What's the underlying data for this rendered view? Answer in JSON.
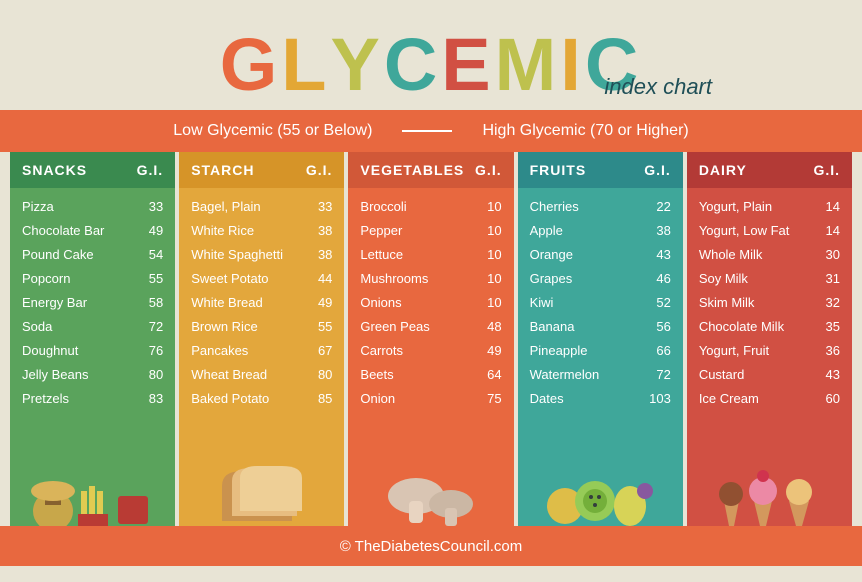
{
  "title_letters": [
    {
      "char": "G",
      "color": "#e8683f"
    },
    {
      "char": "L",
      "color": "#e3a735"
    },
    {
      "char": "Y",
      "color": "#bec14e"
    },
    {
      "char": "C",
      "color": "#3fa79a"
    },
    {
      "char": "E",
      "color": "#d15043"
    },
    {
      "char": "M",
      "color": "#bec14e"
    },
    {
      "char": "I",
      "color": "#e3a735"
    },
    {
      "char": "C",
      "color": "#3fa79a"
    }
  ],
  "subtitle": "index chart",
  "legend": {
    "low": "Low Glycemic (55 or Below)",
    "high": "High Glycemic (70 or Higher)"
  },
  "gi_label": "G.I.",
  "columns": [
    {
      "name": "SNACKS",
      "header_bg": "#3a8a4f",
      "body_bg": "#5aa35c",
      "items": [
        [
          "Pizza",
          "33"
        ],
        [
          "Chocolate Bar",
          "49"
        ],
        [
          "Pound Cake",
          "54"
        ],
        [
          "Popcorn",
          "55"
        ],
        [
          "Energy Bar",
          "58"
        ],
        [
          "Soda",
          "72"
        ],
        [
          "Doughnut",
          "76"
        ],
        [
          "Jelly Beans",
          "80"
        ],
        [
          "Pretzels",
          "83"
        ]
      ],
      "icon": "snacks"
    },
    {
      "name": "STARCH",
      "header_bg": "#d69428",
      "body_bg": "#e3a73c",
      "items": [
        [
          "Bagel, Plain",
          "33"
        ],
        [
          "White Rice",
          "38"
        ],
        [
          "White Spaghetti",
          "38"
        ],
        [
          "Sweet Potato",
          "44"
        ],
        [
          "White Bread",
          "49"
        ],
        [
          "Brown Rice",
          "55"
        ],
        [
          "Pancakes",
          "67"
        ],
        [
          "Wheat Bread",
          "80"
        ],
        [
          "Baked Potato",
          "85"
        ]
      ],
      "icon": "bread"
    },
    {
      "name": "VEGETABLES",
      "header_bg": "#d15838",
      "body_bg": "#e8683f",
      "items": [
        [
          "Broccoli",
          "10"
        ],
        [
          "Pepper",
          "10"
        ],
        [
          "Lettuce",
          "10"
        ],
        [
          "Mushrooms",
          "10"
        ],
        [
          "Onions",
          "10"
        ],
        [
          "Green Peas",
          "48"
        ],
        [
          "Carrots",
          "49"
        ],
        [
          "Beets",
          "64"
        ],
        [
          "Onion",
          "75"
        ]
      ],
      "icon": "mushroom"
    },
    {
      "name": "FRUITS",
      "header_bg": "#2d8a8a",
      "body_bg": "#3fa79a",
      "items": [
        [
          "Cherries",
          "22"
        ],
        [
          "Apple",
          "38"
        ],
        [
          "Orange",
          "43"
        ],
        [
          "Grapes",
          "46"
        ],
        [
          "Kiwi",
          "52"
        ],
        [
          "Banana",
          "56"
        ],
        [
          "Pineapple",
          "66"
        ],
        [
          "Watermelon",
          "72"
        ],
        [
          "Dates",
          "103"
        ]
      ],
      "icon": "fruit"
    },
    {
      "name": "DAIRY",
      "header_bg": "#b33a36",
      "body_bg": "#d15043",
      "items": [
        [
          "Yogurt, Plain",
          "14"
        ],
        [
          "Yogurt, Low Fat",
          "14"
        ],
        [
          "Whole Milk",
          "30"
        ],
        [
          "Soy Milk",
          "31"
        ],
        [
          "Skim Milk",
          "32"
        ],
        [
          "Chocolate Milk",
          "35"
        ],
        [
          "Yogurt, Fruit",
          "36"
        ],
        [
          "Custard",
          "43"
        ],
        [
          "Ice Cream",
          "60"
        ]
      ],
      "icon": "dessert"
    }
  ],
  "footer": "© TheDiabetesCouncil.com",
  "colors": {
    "bg": "#e8e4d5",
    "orange": "#e8683f"
  }
}
